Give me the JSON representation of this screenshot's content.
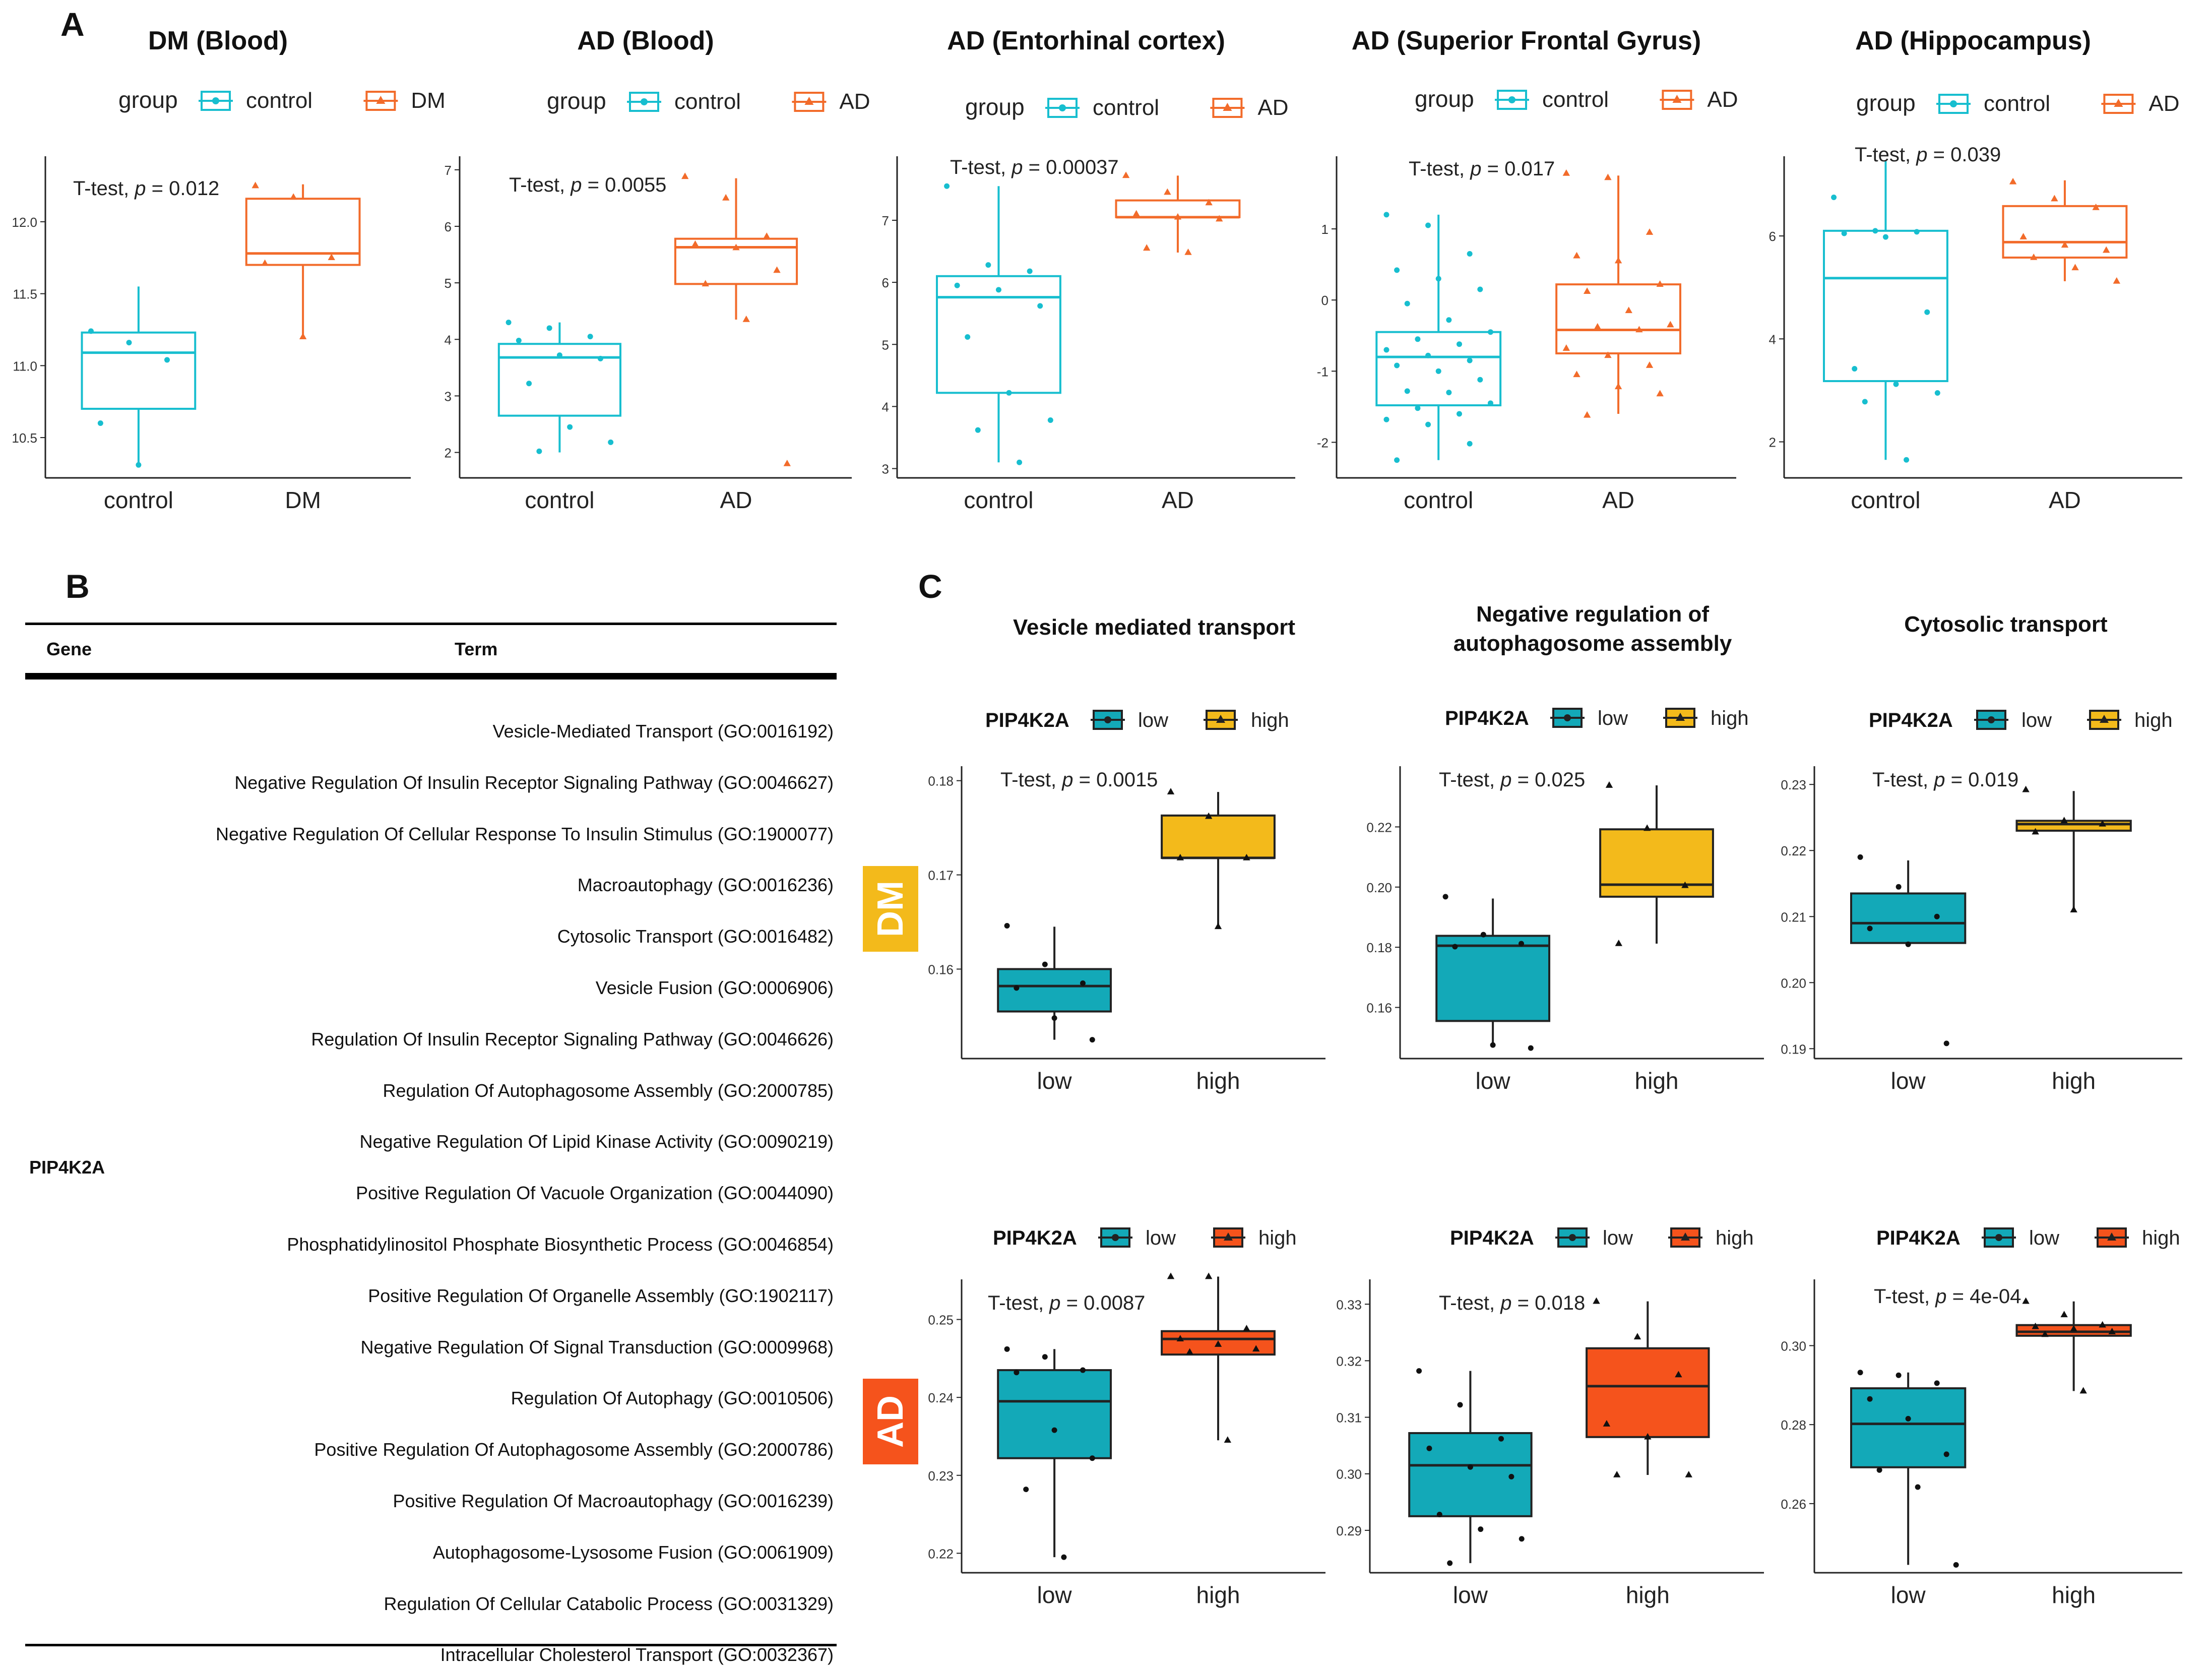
{
  "panel_labels": {
    "a": "A",
    "b": "B",
    "c": "C"
  },
  "colors": {
    "control": "#17BECF",
    "case_orange": "#F26B2A",
    "low_teal": "#13A9B8",
    "high_yellow": "#F3BA1B",
    "high_red": "#F5531C",
    "dm_badge": "#F3BA1B",
    "ad_badge": "#F5531C"
  },
  "table": {
    "header_gene": "Gene",
    "header_term": "Term",
    "gene": "PIP4K2A",
    "terms": [
      "Vesicle-Mediated Transport (GO:0016192)",
      "Negative Regulation Of Insulin Receptor Signaling Pathway (GO:0046627)",
      "Negative Regulation Of Cellular Response To Insulin Stimulus (GO:1900077)",
      "Macroautophagy (GO:0016236)",
      "Cytosolic Transport (GO:0016482)",
      "Vesicle Fusion (GO:0006906)",
      "Regulation Of Insulin Receptor Signaling Pathway (GO:0046626)",
      "Regulation Of Autophagosome Assembly (GO:2000785)",
      "Negative Regulation Of Lipid Kinase Activity (GO:0090219)",
      "Positive Regulation Of Vacuole Organization (GO:0044090)",
      "Phosphatidylinositol Phosphate Biosynthetic Process (GO:0046854)",
      "Positive Regulation Of Organelle Assembly (GO:1902117)",
      "Negative Regulation Of Signal Transduction (GO:0009968)",
      "Regulation Of Autophagy (GO:0010506)",
      "Positive Regulation Of Autophagosome Assembly (GO:2000786)",
      "Positive Regulation Of Macroautophagy (GO:0016239)",
      "Autophagosome-Lysosome Fusion (GO:0061909)",
      "Regulation Of Cellular Catabolic Process (GO:0031329)",
      "Intracellular Cholesterol Transport (GO:0032367)"
    ]
  },
  "panel_c": {
    "column_titles": [
      [
        "Vesicle mediated transport"
      ],
      [
        "Negative regulation of",
        "autophagosome assembly"
      ],
      [
        "Cytosolic transport"
      ]
    ],
    "row_badges": [
      "DM",
      "AD"
    ]
  },
  "chart_data": [
    {
      "id": "a1",
      "type": "box",
      "title": "DM (Blood)",
      "legend_title": "group",
      "legend": [
        "control",
        "DM"
      ],
      "stat_prefix": "T-test, ",
      "stat_p": "p",
      "stat_value": " = 0.012",
      "categories": [
        "control",
        "DM"
      ],
      "ylim": [
        10.22,
        12.42
      ],
      "yticks": [
        10.5,
        11.0,
        11.5,
        12.0
      ],
      "ytick_labels": [
        "10.5",
        "11.0",
        "11.5",
        "12.0"
      ],
      "boxes": [
        [
          10.3,
          10.7,
          11.09,
          11.23,
          11.55
        ],
        [
          11.2,
          11.7,
          11.78,
          12.16,
          12.26
        ]
      ],
      "points": [
        [
          11.24,
          11.16,
          11.04,
          10.6,
          10.31
        ],
        [
          12.25,
          12.17,
          11.75,
          11.71,
          11.2
        ]
      ]
    },
    {
      "id": "a2",
      "type": "box",
      "title": "AD (Blood)",
      "legend_title": "group",
      "legend": [
        "control",
        "AD"
      ],
      "stat_prefix": "T-test, ",
      "stat_p": "p",
      "stat_value": " = 0.0055",
      "categories": [
        "control",
        "AD"
      ],
      "ylim": [
        1.55,
        7.15
      ],
      "yticks": [
        2,
        3,
        4,
        5,
        6,
        7
      ],
      "ytick_labels": [
        "2",
        "3",
        "4",
        "5",
        "6",
        "7"
      ],
      "boxes": [
        [
          2.0,
          2.65,
          3.68,
          3.92,
          4.3
        ],
        [
          4.35,
          4.98,
          5.63,
          5.78,
          6.85
        ]
      ],
      "points": [
        [
          4.3,
          4.2,
          4.05,
          3.98,
          3.72,
          3.66,
          3.22,
          2.45,
          2.18,
          2.02
        ],
        [
          6.88,
          6.5,
          5.82,
          5.68,
          5.62,
          5.22,
          4.98,
          4.35,
          1.8
        ]
      ]
    },
    {
      "id": "a3",
      "type": "box",
      "title": "AD (Entorhinal cortex)",
      "legend_title": "group",
      "legend": [
        "control",
        "AD"
      ],
      "stat_prefix": "T-test, ",
      "stat_p": "p",
      "stat_value": " = 0.00037",
      "categories": [
        "control",
        "AD"
      ],
      "ylim": [
        2.85,
        7.95
      ],
      "yticks": [
        3,
        4,
        5,
        6,
        7
      ],
      "ytick_labels": [
        "3",
        "4",
        "5",
        "6",
        "7"
      ],
      "boxes": [
        [
          3.1,
          4.22,
          5.76,
          6.1,
          7.55
        ],
        [
          6.48,
          7.05,
          7.05,
          7.32,
          7.72
        ]
      ],
      "points": [
        [
          7.55,
          6.28,
          6.18,
          5.95,
          5.88,
          5.62,
          5.12,
          4.22,
          3.78,
          3.62,
          3.1
        ],
        [
          7.72,
          7.45,
          7.28,
          7.1,
          7.05,
          7.02,
          6.55,
          6.48
        ]
      ]
    },
    {
      "id": "a4",
      "type": "box",
      "title": "AD (Superior Frontal Gyrus)",
      "legend_title": "group",
      "legend": [
        "control",
        "AD"
      ],
      "stat_prefix": "T-test, ",
      "stat_p": "p",
      "stat_value": " = 0.017",
      "categories": [
        "control",
        "AD"
      ],
      "ylim": [
        -2.5,
        1.95
      ],
      "yticks": [
        -2,
        -1,
        0,
        1
      ],
      "ytick_labels": [
        "-2",
        "-1",
        "0",
        "1"
      ],
      "boxes": [
        [
          -2.25,
          -1.48,
          -0.8,
          -0.45,
          1.2
        ],
        [
          -1.6,
          -0.75,
          -0.42,
          0.22,
          1.75
        ]
      ],
      "points": [
        [
          1.2,
          1.05,
          0.65,
          0.42,
          0.3,
          0.15,
          -0.05,
          -0.28,
          -0.45,
          -0.55,
          -0.62,
          -0.7,
          -0.78,
          -0.85,
          -0.92,
          -1.0,
          -1.12,
          -1.28,
          -1.3,
          -1.45,
          -1.52,
          -1.6,
          -1.68,
          -1.75,
          -2.02,
          -2.25
        ],
        [
          1.78,
          1.72,
          0.95,
          0.62,
          0.55,
          0.22,
          0.12,
          -0.15,
          -0.35,
          -0.38,
          -0.42,
          -0.68,
          -0.78,
          -0.92,
          -1.05,
          -1.22,
          -1.32,
          -1.62
        ]
      ]
    },
    {
      "id": "a5",
      "type": "box",
      "title": "AD (Hippocampus)",
      "legend_title": "group",
      "legend": [
        "control",
        "AD"
      ],
      "stat_prefix": "T-test, ",
      "stat_p": "p",
      "stat_value": " = 0.039",
      "categories": [
        "control",
        "AD"
      ],
      "ylim": [
        1.3,
        7.45
      ],
      "yticks": [
        2,
        4,
        6
      ],
      "ytick_labels": [
        "2",
        "4",
        "6"
      ],
      "boxes": [
        [
          1.65,
          3.18,
          5.18,
          6.1,
          7.45
        ],
        [
          5.12,
          5.58,
          5.88,
          6.58,
          7.08
        ]
      ],
      "points": [
        [
          6.75,
          6.1,
          6.08,
          6.05,
          5.98,
          4.52,
          3.42,
          3.12,
          2.95,
          2.78,
          1.65
        ],
        [
          7.05,
          6.72,
          6.55,
          5.98,
          5.82,
          5.72,
          5.58,
          5.38,
          5.12
        ]
      ]
    },
    {
      "id": "c11",
      "type": "box",
      "gene": "PIP4K2A",
      "legend": [
        "low",
        "high"
      ],
      "high_color": "yellow",
      "stat_prefix": "T-test, ",
      "stat_p": "p",
      "stat_value": " = 0.0015",
      "categories": [
        "low",
        "high"
      ],
      "ylim": [
        0.1505,
        0.181
      ],
      "yticks": [
        0.16,
        0.17,
        0.18
      ],
      "ytick_labels": [
        "0.16",
        "0.17",
        "0.18"
      ],
      "boxes": [
        [
          0.1525,
          0.1555,
          0.1582,
          0.16,
          0.1645
        ],
        [
          0.1645,
          0.1718,
          0.1718,
          0.1763,
          0.1788
        ]
      ],
      "points": [
        [
          0.1646,
          0.1605,
          0.1585,
          0.158,
          0.1548,
          0.1525
        ],
        [
          0.1788,
          0.1762,
          0.1718,
          0.1718,
          0.1645
        ]
      ]
    },
    {
      "id": "c12",
      "type": "box",
      "gene": "PIP4K2A",
      "legend": [
        "low",
        "high"
      ],
      "high_color": "yellow",
      "stat_prefix": "T-test, ",
      "stat_p": "p",
      "stat_value": " = 0.025",
      "categories": [
        "low",
        "high"
      ],
      "ylim": [
        0.143,
        0.2385
      ],
      "yticks": [
        0.16,
        0.18,
        0.2,
        0.22
      ],
      "ytick_labels": [
        "0.16",
        "0.18",
        "0.20",
        "0.22"
      ],
      "boxes": [
        [
          0.147,
          0.1555,
          0.1805,
          0.1838,
          0.1962
        ],
        [
          0.1812,
          0.1968,
          0.2008,
          0.2192,
          0.2338
        ]
      ],
      "points": [
        [
          0.1968,
          0.1842,
          0.1812,
          0.1802,
          0.1475,
          0.1465
        ],
        [
          0.2338,
          0.2195,
          0.2005,
          0.1812
        ]
      ]
    },
    {
      "id": "c13",
      "type": "box",
      "gene": "PIP4K2A",
      "legend": [
        "low",
        "high"
      ],
      "high_color": "yellow",
      "stat_prefix": "T-test, ",
      "stat_p": "p",
      "stat_value": " = 0.019",
      "categories": [
        "low",
        "high"
      ],
      "ylim": [
        0.1885,
        0.232
      ],
      "yticks": [
        0.19,
        0.2,
        0.21,
        0.22,
        0.23
      ],
      "ytick_labels": [
        "0.19",
        "0.20",
        "0.21",
        "0.22",
        "0.23"
      ],
      "boxes": [
        [
          0.2055,
          0.206,
          0.209,
          0.2135,
          0.2185
        ],
        [
          0.211,
          0.223,
          0.224,
          0.2245,
          0.229
        ]
      ],
      "points": [
        [
          0.219,
          0.2145,
          0.21,
          0.2082,
          0.2058,
          0.1908
        ],
        [
          0.2292,
          0.2245,
          0.224,
          0.2228,
          0.211
        ]
      ]
    },
    {
      "id": "c21",
      "type": "box",
      "gene": "PIP4K2A",
      "legend": [
        "low",
        "high"
      ],
      "high_color": "red",
      "stat_prefix": "T-test, ",
      "stat_p": "p",
      "stat_value": " = 0.0087",
      "categories": [
        "low",
        "high"
      ],
      "ylim": [
        0.2175,
        0.2545
      ],
      "yticks": [
        0.22,
        0.23,
        0.24,
        0.25
      ],
      "ytick_labels": [
        "0.22",
        "0.23",
        "0.24",
        "0.25"
      ],
      "boxes": [
        [
          0.2195,
          0.2322,
          0.2395,
          0.2435,
          0.2462
        ],
        [
          0.2345,
          0.2455,
          0.2475,
          0.2485,
          0.2555
        ]
      ],
      "points": [
        [
          0.2462,
          0.2452,
          0.2435,
          0.2432,
          0.2358,
          0.2322,
          0.2282,
          0.2195
        ],
        [
          0.2555,
          0.2555,
          0.2488,
          0.2475,
          0.2468,
          0.2462,
          0.2458,
          0.2345
        ]
      ]
    },
    {
      "id": "c22",
      "type": "box",
      "gene": "PIP4K2A",
      "legend": [
        "low",
        "high"
      ],
      "high_color": "red",
      "stat_prefix": "T-test, ",
      "stat_p": "p",
      "stat_value": " = 0.018",
      "categories": [
        "low",
        "high"
      ],
      "ylim": [
        0.2825,
        0.3335
      ],
      "yticks": [
        0.29,
        0.3,
        0.31,
        0.32,
        0.33
      ],
      "ytick_labels": [
        "0.29",
        "0.30",
        "0.31",
        "0.32",
        "0.33"
      ],
      "boxes": [
        [
          0.2842,
          0.2925,
          0.3015,
          0.3072,
          0.3182
        ],
        [
          0.2998,
          0.3065,
          0.3155,
          0.3222,
          0.3305
        ]
      ],
      "points": [
        [
          0.3182,
          0.3122,
          0.3062,
          0.3045,
          0.3012,
          0.2995,
          0.2928,
          0.2902,
          0.2885,
          0.2842
        ],
        [
          0.3305,
          0.3242,
          0.3175,
          0.3088,
          0.3065,
          0.2998,
          0.2998
        ]
      ]
    },
    {
      "id": "c23",
      "type": "box",
      "gene": "PIP4K2A",
      "legend": [
        "low",
        "high"
      ],
      "high_color": "red",
      "stat_prefix": "T-test, ",
      "stat_p": "p",
      "stat_value": " = 4e-04",
      "categories": [
        "low",
        "high"
      ],
      "ylim": [
        0.2425,
        0.3155
      ],
      "yticks": [
        0.26,
        0.28,
        0.3
      ],
      "ytick_labels": [
        "0.26",
        "0.28",
        "0.30"
      ],
      "boxes": [
        [
          0.2445,
          0.2692,
          0.2802,
          0.2892,
          0.2932
        ],
        [
          0.2885,
          0.3025,
          0.3035,
          0.3052,
          0.3112
        ]
      ],
      "points": [
        [
          0.2932,
          0.2925,
          0.2905,
          0.2865,
          0.2815,
          0.2725,
          0.2685,
          0.2642,
          0.2445
        ],
        [
          0.3112,
          0.3078,
          0.3052,
          0.3048,
          0.3042,
          0.3035,
          0.3028,
          0.2885
        ]
      ]
    }
  ]
}
